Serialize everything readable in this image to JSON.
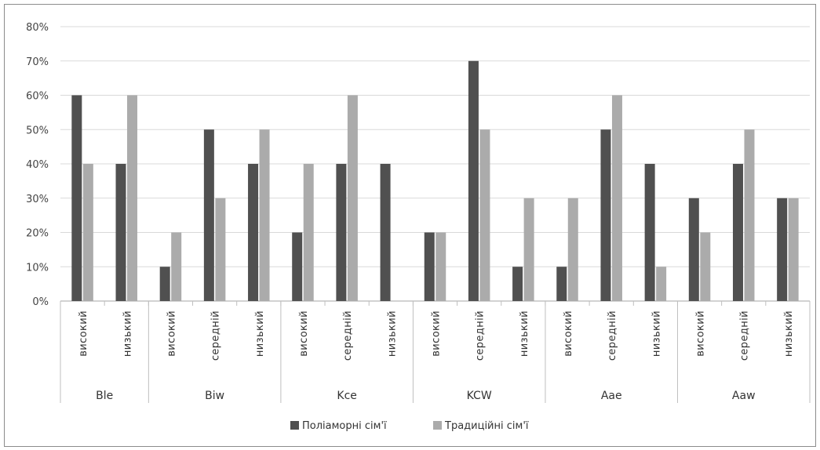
{
  "chart_data": {
    "type": "bar",
    "title": "",
    "xlabel": "",
    "ylabel": "",
    "ylim": [
      0,
      0.8
    ],
    "yticks": [
      "0%",
      "10%",
      "20%",
      "30%",
      "40%",
      "50%",
      "60%",
      "70%",
      "80%"
    ],
    "grid": true,
    "legend_position": "bottom",
    "groups": [
      {
        "name": "Ble",
        "categories": [
          "високий",
          "низький"
        ]
      },
      {
        "name": "Biw",
        "categories": [
          "високий",
          "середній",
          "низький"
        ]
      },
      {
        "name": "Kce",
        "categories": [
          "високий",
          "середній",
          "низький"
        ]
      },
      {
        "name": "KCW",
        "categories": [
          "високий",
          "середній",
          "низький"
        ]
      },
      {
        "name": "Aae",
        "categories": [
          "високий",
          "середній",
          "низький"
        ]
      },
      {
        "name": "Aaw",
        "categories": [
          "високий",
          "середній",
          "низький"
        ]
      }
    ],
    "series": [
      {
        "name": "Поліаморні сім'ї",
        "color": "#505050",
        "values": [
          0.6,
          0.4,
          0.1,
          0.5,
          0.4,
          0.2,
          0.4,
          0.4,
          0.2,
          0.7,
          0.1,
          0.1,
          0.5,
          0.4,
          0.3,
          0.4,
          0.3
        ]
      },
      {
        "name": "Традиційні сім'ї",
        "color": "#ababab",
        "values": [
          0.4,
          0.6,
          0.2,
          0.3,
          0.5,
          0.4,
          0.6,
          0.0,
          0.2,
          0.5,
          0.3,
          0.3,
          0.6,
          0.1,
          0.2,
          0.5,
          0.3
        ]
      }
    ]
  }
}
